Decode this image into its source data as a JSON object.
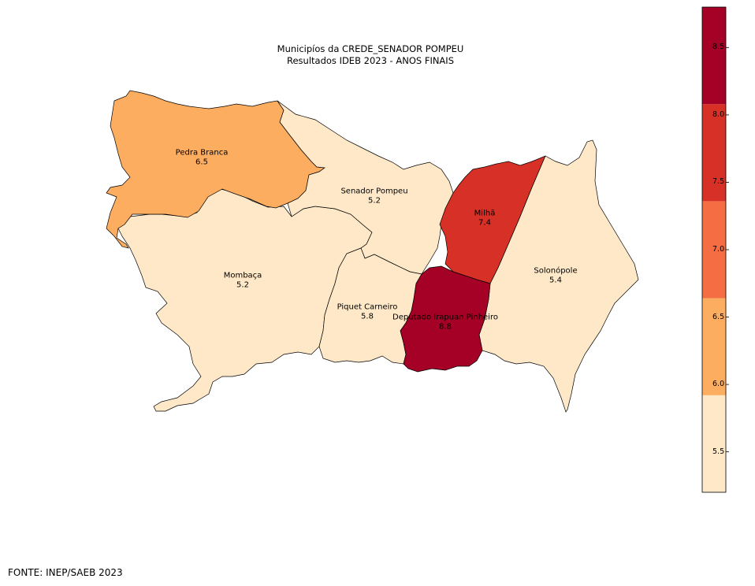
{
  "title_line1": "Municipíos da CREDE_SENADOR POMPEU",
  "title_line2": "Resultados IDEB 2023 - ANOS FINAIS",
  "source": "FONTE: INEP/SAEB 2023",
  "colorbar": {
    "range": [
      5.2,
      8.8
    ],
    "ticks": [
      "5.5",
      "6.0",
      "6.5",
      "7.0",
      "7.5",
      "8.0",
      "8.5"
    ],
    "bins": [
      {
        "from": 5.2,
        "to": 5.92,
        "color": "#fee8c8"
      },
      {
        "from": 5.92,
        "to": 6.64,
        "color": "#fdad60"
      },
      {
        "from": 6.64,
        "to": 7.36,
        "color": "#f46d43"
      },
      {
        "from": 7.36,
        "to": 8.08,
        "color": "#d73027"
      },
      {
        "from": 8.08,
        "to": 8.8,
        "color": "#a50026"
      }
    ]
  },
  "municipalities": [
    {
      "name": "Pedra Branca",
      "value": "6.5",
      "color": "#fdad60"
    },
    {
      "name": "Senador Pompeu",
      "value": "5.2",
      "color": "#fee8c8"
    },
    {
      "name": "Milhã",
      "value": "7.4",
      "color": "#d73027"
    },
    {
      "name": "Mombaça",
      "value": "5.2",
      "color": "#fee8c8"
    },
    {
      "name": "Solonópole",
      "value": "5.4",
      "color": "#fee8c8"
    },
    {
      "name": "Piquet Carneiro",
      "value": "5.8",
      "color": "#fee8c8"
    },
    {
      "name": "Deputado Irapuan Pinheiro",
      "value": "8.8",
      "color": "#a50026"
    }
  ]
}
